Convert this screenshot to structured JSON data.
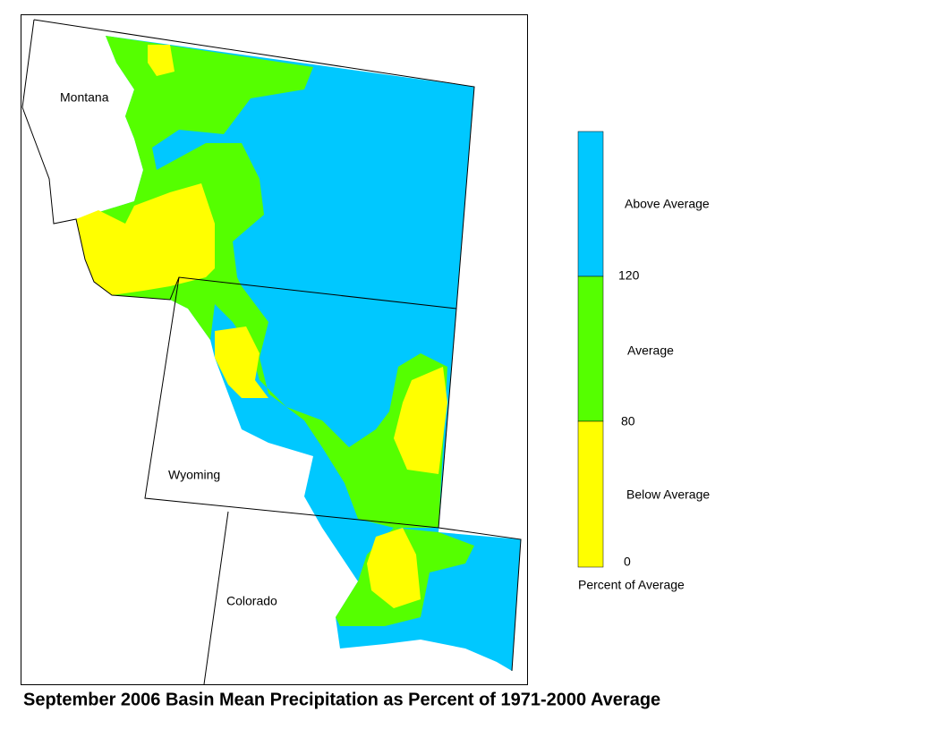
{
  "map": {
    "title": "September 2006 Basin Mean Precipitation as Percent of 1971-2000 Average",
    "regions": [
      {
        "label": "Montana"
      },
      {
        "label": "Wyoming"
      },
      {
        "label": "Colorado"
      }
    ],
    "legend": {
      "title": "Percent of Average",
      "classes": [
        {
          "label": "Above Average",
          "color": "#00c8ff"
        },
        {
          "label": "Average",
          "color": "#55ff00"
        },
        {
          "label": "Below Average",
          "color": "#ffff00"
        }
      ],
      "ticks": [
        120,
        80,
        0
      ]
    }
  }
}
